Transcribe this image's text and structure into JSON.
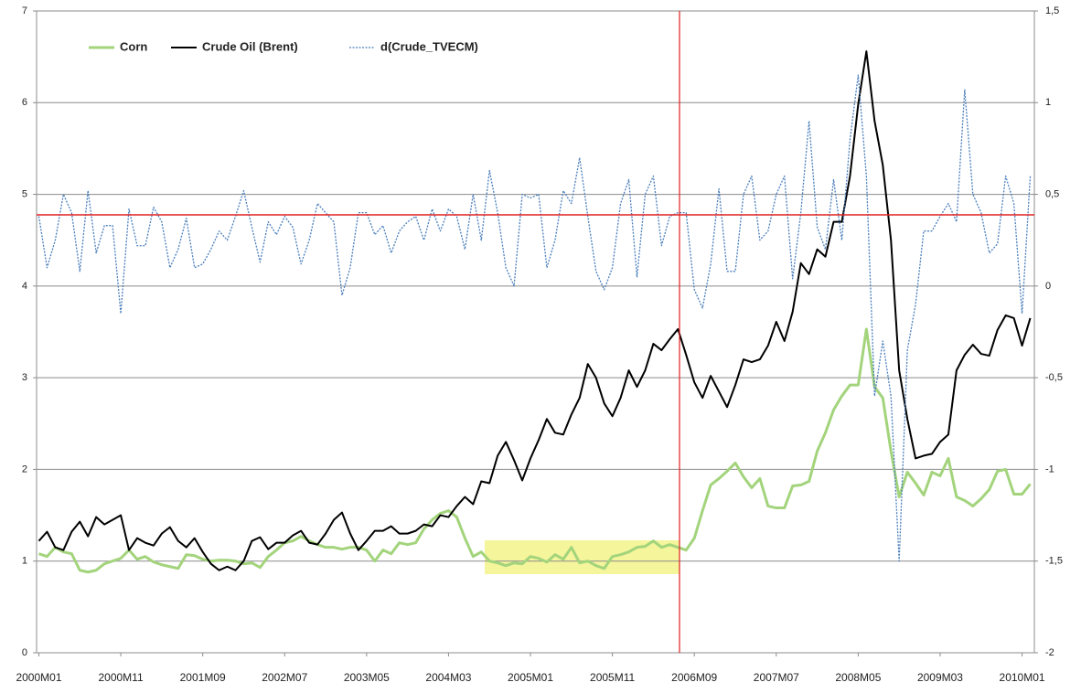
{
  "chart_data": {
    "type": "line",
    "categories": [
      "2000M01",
      null,
      null,
      null,
      null,
      null,
      null,
      null,
      null,
      null,
      "2000M11",
      null,
      null,
      null,
      null,
      null,
      null,
      null,
      null,
      null,
      "2001M09",
      null,
      null,
      null,
      null,
      null,
      null,
      null,
      null,
      null,
      "2002M07",
      null,
      null,
      null,
      null,
      null,
      null,
      null,
      null,
      null,
      "2003M05",
      null,
      null,
      null,
      null,
      null,
      null,
      null,
      null,
      null,
      "2004M03",
      null,
      null,
      null,
      null,
      null,
      null,
      null,
      null,
      null,
      "2005M01",
      null,
      null,
      null,
      null,
      null,
      null,
      null,
      null,
      null,
      "2005M11",
      null,
      null,
      null,
      null,
      null,
      null,
      null,
      null,
      null,
      "2006M09",
      null,
      null,
      null,
      null,
      null,
      null,
      null,
      null,
      null,
      "2007M07",
      null,
      null,
      null,
      null,
      null,
      null,
      null,
      null,
      null,
      "2008M05",
      null,
      null,
      null,
      null,
      null,
      null,
      null,
      null,
      null,
      "2009M03",
      null,
      null,
      null,
      null,
      null,
      null,
      null,
      null,
      null,
      "2010M01",
      null
    ],
    "series": [
      {
        "name": "Corn",
        "color": "#a3d47c",
        "values": [
          1.08,
          1.05,
          1.15,
          1.1,
          1.08,
          0.9,
          0.88,
          0.9,
          0.97,
          1.0,
          1.03,
          1.12,
          1.02,
          1.05,
          0.99,
          0.96,
          0.94,
          0.92,
          1.07,
          1.06,
          1.02,
          1.0,
          1.01,
          1.01,
          1.0,
          0.97,
          0.98,
          0.93,
          1.05,
          1.12,
          1.2,
          1.22,
          1.27,
          1.22,
          1.18,
          1.15,
          1.15,
          1.13,
          1.15,
          1.15,
          1.12,
          1.0,
          1.12,
          1.08,
          1.2,
          1.18,
          1.2,
          1.35,
          1.45,
          1.52,
          1.55,
          1.48,
          1.25,
          1.05,
          1.1,
          1.0,
          0.98,
          0.95,
          0.98,
          0.97,
          1.05,
          1.03,
          0.99,
          1.07,
          1.02,
          1.15,
          0.98,
          1.0,
          0.95,
          0.92,
          1.05,
          1.07,
          1.1,
          1.15,
          1.16,
          1.22,
          1.15,
          1.18,
          1.15,
          1.12,
          1.25,
          1.55,
          1.83,
          1.9,
          1.98,
          2.07,
          1.92,
          1.8,
          1.9,
          1.6,
          1.58,
          1.58,
          1.82,
          1.83,
          1.87,
          2.2,
          2.4,
          2.65,
          2.8,
          2.92,
          2.92,
          3.53,
          2.9,
          2.78,
          2.2,
          1.7,
          1.97,
          1.85,
          1.72,
          1.97,
          1.93,
          2.12,
          1.7,
          1.66,
          1.6,
          1.68,
          1.78,
          1.98,
          2.0,
          1.73,
          1.73,
          1.84
        ]
      },
      {
        "name": "Crude Oil (Brent)",
        "color": "#000000",
        "values": [
          1.22,
          1.32,
          1.15,
          1.12,
          1.32,
          1.43,
          1.27,
          1.48,
          1.4,
          1.45,
          1.5,
          1.12,
          1.25,
          1.2,
          1.17,
          1.3,
          1.37,
          1.22,
          1.15,
          1.25,
          1.1,
          0.97,
          0.9,
          0.94,
          0.9,
          1.0,
          1.22,
          1.26,
          1.13,
          1.2,
          1.2,
          1.28,
          1.33,
          1.2,
          1.18,
          1.3,
          1.45,
          1.53,
          1.3,
          1.12,
          1.22,
          1.33,
          1.33,
          1.38,
          1.3,
          1.3,
          1.33,
          1.4,
          1.38,
          1.5,
          1.48,
          1.6,
          1.7,
          1.62,
          1.87,
          1.85,
          2.15,
          2.3,
          2.1,
          1.88,
          2.12,
          2.32,
          2.55,
          2.4,
          2.38,
          2.6,
          2.78,
          3.15,
          3.0,
          2.72,
          2.58,
          2.78,
          3.08,
          2.9,
          3.08,
          3.37,
          3.3,
          3.42,
          3.53,
          3.25,
          2.95,
          2.78,
          3.02,
          2.85,
          2.68,
          2.92,
          3.2,
          3.17,
          3.2,
          3.35,
          3.61,
          3.4,
          3.72,
          4.25,
          4.13,
          4.4,
          4.32,
          4.7,
          4.7,
          5.2,
          5.98,
          6.56,
          5.8,
          5.32,
          4.5,
          3.08,
          2.55,
          2.12,
          2.15,
          2.17,
          2.3,
          2.38,
          3.08,
          3.25,
          3.36,
          3.26,
          3.24,
          3.52,
          3.68,
          3.65,
          3.35,
          3.65
        ]
      },
      {
        "name": "d(Crude_TVECM)",
        "color": "#4a7ebb",
        "axis": "y2",
        "dashed": true,
        "values": [
          0.38,
          0.1,
          0.25,
          0.5,
          0.4,
          0.08,
          0.52,
          0.18,
          0.33,
          0.33,
          -0.15,
          0.42,
          0.22,
          0.22,
          0.43,
          0.35,
          0.1,
          0.2,
          0.37,
          0.1,
          0.12,
          0.2,
          0.3,
          0.25,
          0.38,
          0.52,
          0.32,
          0.13,
          0.35,
          0.28,
          0.38,
          0.32,
          0.12,
          0.25,
          0.45,
          0.4,
          0.35,
          -0.05,
          0.1,
          0.4,
          0.4,
          0.28,
          0.33,
          0.18,
          0.3,
          0.35,
          0.38,
          0.25,
          0.42,
          0.3,
          0.42,
          0.38,
          0.2,
          0.5,
          0.25,
          0.63,
          0.4,
          0.1,
          0.0,
          0.5,
          0.48,
          0.5,
          0.1,
          0.25,
          0.52,
          0.45,
          0.7,
          0.38,
          0.08,
          -0.02,
          0.1,
          0.45,
          0.58,
          0.05,
          0.5,
          0.6,
          0.22,
          0.38,
          0.4,
          0.4,
          -0.02,
          -0.12,
          0.12,
          0.53,
          0.08,
          0.08,
          0.5,
          0.6,
          0.25,
          0.3,
          0.5,
          0.6,
          0.04,
          0.4,
          0.9,
          0.32,
          0.2,
          0.58,
          0.25,
          0.8,
          1.15,
          0.6,
          -0.6,
          -0.3,
          -0.6,
          -1.5,
          -0.35,
          -0.1,
          0.3,
          0.3,
          0.38,
          0.45,
          0.35,
          1.07,
          0.5,
          0.4,
          0.18,
          0.23,
          0.6,
          0.45,
          -0.15,
          0.6
        ]
      }
    ],
    "ylim": [
      0,
      7
    ],
    "yticks": [
      0,
      1,
      2,
      3,
      4,
      5,
      6,
      7
    ],
    "y2lim": [
      -2,
      1.5
    ],
    "y2ticks": [
      -2,
      {
        "value": -1.5,
        "label": "-1,5"
      },
      -1,
      {
        "value": -0.5,
        "label": "-0,5"
      },
      0,
      {
        "value": 0.5,
        "label": "0,5"
      },
      1,
      {
        "value": 1.5,
        "label": "1,5"
      }
    ],
    "grid": true,
    "legend": "top-left"
  }
}
